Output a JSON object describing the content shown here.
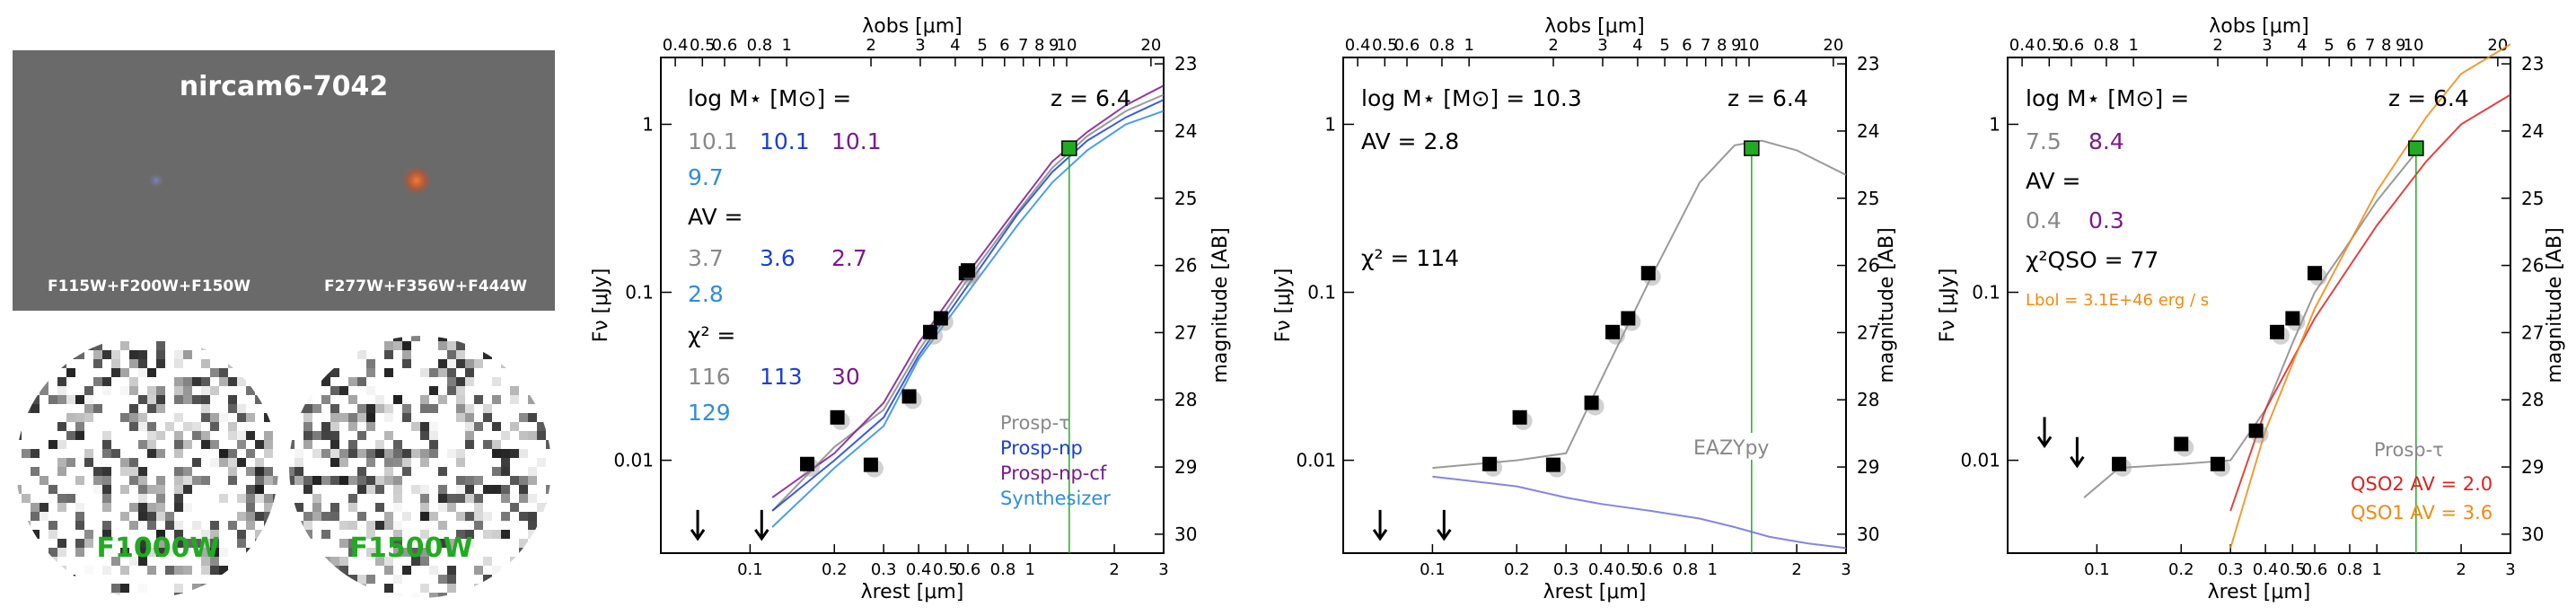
{
  "thumbnails": {
    "object_id": "nircam6-7042",
    "rgb_left_caption": "F115W+F200W+F150W",
    "rgb_right_caption": "F277W+F356W+F444W",
    "miri_left_label": "F1000W",
    "miri_right_label": "F1500W",
    "label_color": "#22aa22"
  },
  "panel_axes": {
    "top_xlabel": "λobs [μm]",
    "bottom_xlabel": "λrest [μm]",
    "ylabel": "Fν [μJy]",
    "right_ylabel": "magnitude [AB]",
    "y_ticks": [
      "0.01",
      "0.1",
      "1"
    ],
    "mag_ticks": [
      "23",
      "24",
      "25",
      "26",
      "27",
      "28",
      "29",
      "30"
    ],
    "top_ticks": [
      "0.4",
      "0.5",
      "0.6",
      "0.8",
      "1",
      "2",
      "3",
      "4",
      "5",
      "6",
      "7",
      "8",
      "9",
      "10",
      "20"
    ],
    "bottom_ticks": [
      "0.1",
      "0.2",
      "0.3",
      "0.4",
      "0.5",
      "0.6",
      "0.8",
      "1",
      "2",
      "3"
    ]
  },
  "panel1": {
    "mass_header": "log M⋆ [M⊙] =",
    "mass_values": [
      "10.1",
      "10.1",
      "10.1",
      "9.7"
    ],
    "av_header": "AV =",
    "av_values": [
      "3.7",
      "3.6",
      "2.7",
      "2.8"
    ],
    "chi_header": "χ² =",
    "chi_values": [
      "116",
      "113",
      "30",
      "129"
    ],
    "redshift": "z = 6.4",
    "legend": [
      "Prosp-τ",
      "Prosp-np",
      "Prosp-np-cf",
      "Synthesizer"
    ],
    "colors": [
      "#888888",
      "#1a3fd6",
      "#7a1a8c",
      "#2e8de0"
    ]
  },
  "panel2": {
    "mass_line": "log M⋆ [M⊙] = 10.3",
    "av_line": "AV = 2.8",
    "chi_line": "χ² = 114",
    "redshift": "z = 6.4",
    "eazy_label": "EAZYpy"
  },
  "panel3": {
    "mass_header": "log M⋆ [M⊙] =",
    "mass_values": [
      "7.5",
      "8.4"
    ],
    "av_header": "AV =",
    "av_values": [
      "0.4",
      "0.3"
    ],
    "chi_line": "χ²QSO = 77",
    "lbol": "Lbol = 3.1E+46 erg / s",
    "redshift": "z = 6.4",
    "legend": [
      "Prosp-τ",
      "QSO2 AV = 2.0",
      "QSO1 AV = 3.6"
    ],
    "colors": [
      "#888888",
      "#e02020",
      "#f08a10",
      "#7a1a8c"
    ]
  },
  "chart_data": [
    {
      "type": "scatter",
      "title": "",
      "xlabel": "λrest [μm]",
      "ylabel": "Fν [μJy]",
      "xscale": "log",
      "yscale": "log",
      "xlim": [
        0.048,
        3.0
      ],
      "ylim": [
        0.0028,
        2.5
      ],
      "photometry": {
        "x": [
          0.065,
          0.11,
          0.16,
          0.205,
          0.27,
          0.37,
          0.44,
          0.48,
          0.59,
          0.6,
          1.38
        ],
        "y": [
          0.0035,
          0.0035,
          0.0095,
          0.018,
          0.0094,
          0.024,
          0.058,
          0.07,
          0.13,
          0.135,
          0.72
        ],
        "upper_limit": [
          true,
          true,
          false,
          false,
          false,
          false,
          false,
          false,
          false,
          false,
          false
        ]
      },
      "series": [
        {
          "name": "Prosp-τ",
          "x": [
            0.12,
            0.2,
            0.3,
            0.4,
            0.6,
            0.9,
            1.2,
            1.6,
            2.2,
            3.0
          ],
          "y": [
            0.005,
            0.012,
            0.02,
            0.045,
            0.12,
            0.3,
            0.55,
            0.85,
            1.2,
            1.5
          ]
        },
        {
          "name": "Prosp-np",
          "x": [
            0.12,
            0.2,
            0.3,
            0.4,
            0.6,
            0.9,
            1.2,
            1.6,
            2.2,
            3.0
          ],
          "y": [
            0.005,
            0.01,
            0.018,
            0.042,
            0.11,
            0.29,
            0.52,
            0.8,
            1.1,
            1.4
          ]
        },
        {
          "name": "Prosp-np-cf",
          "x": [
            0.12,
            0.2,
            0.3,
            0.4,
            0.6,
            0.9,
            1.2,
            1.6,
            2.2,
            3.0
          ],
          "y": [
            0.006,
            0.011,
            0.022,
            0.05,
            0.13,
            0.32,
            0.6,
            0.9,
            1.3,
            1.7
          ]
        },
        {
          "name": "Synthesizer",
          "x": [
            0.12,
            0.2,
            0.3,
            0.4,
            0.6,
            0.9,
            1.2,
            1.6,
            2.2,
            3.0
          ],
          "y": [
            0.004,
            0.009,
            0.016,
            0.04,
            0.1,
            0.25,
            0.45,
            0.7,
            1.0,
            1.2
          ]
        }
      ]
    },
    {
      "type": "scatter",
      "title": "",
      "xlabel": "λrest [μm]",
      "ylabel": "Fν [μJy]",
      "xscale": "log",
      "yscale": "log",
      "xlim": [
        0.048,
        3.0
      ],
      "ylim": [
        0.0028,
        2.5
      ],
      "photometry": {
        "x": [
          0.065,
          0.11,
          0.16,
          0.205,
          0.27,
          0.37,
          0.44,
          0.5,
          0.59,
          1.38
        ],
        "y": [
          0.0035,
          0.0035,
          0.0095,
          0.018,
          0.0094,
          0.022,
          0.058,
          0.07,
          0.13,
          0.72
        ],
        "upper_limit": [
          true,
          true,
          false,
          false,
          false,
          false,
          false,
          false,
          false,
          false
        ]
      },
      "series": [
        {
          "name": "",
          "x": [
            0.1,
            0.2,
            0.3,
            0.4,
            0.6,
            0.9,
            1.2,
            1.5,
            2.0,
            3.0
          ],
          "y": [
            0.009,
            0.01,
            0.011,
            0.03,
            0.12,
            0.45,
            0.75,
            0.8,
            0.7,
            0.5
          ]
        },
        {
          "name": "EAZYpy",
          "x": [
            0.1,
            0.2,
            0.3,
            0.4,
            0.6,
            0.9,
            1.2,
            1.6,
            2.2,
            3.0
          ],
          "y": [
            0.008,
            0.007,
            0.006,
            0.0055,
            0.005,
            0.0045,
            0.004,
            0.0035,
            0.0032,
            0.003
          ]
        }
      ]
    },
    {
      "type": "scatter",
      "title": "",
      "xlabel": "λrest [μm]",
      "ylabel": "Fν [μJy]",
      "xscale": "log",
      "yscale": "log",
      "xlim": [
        0.048,
        3.0
      ],
      "ylim": [
        0.0028,
        2.5
      ],
      "photometry": {
        "x": [
          0.065,
          0.085,
          0.12,
          0.2,
          0.27,
          0.37,
          0.44,
          0.5,
          0.6,
          1.38
        ],
        "y": [
          0.0125,
          0.0095,
          0.0095,
          0.0125,
          0.0095,
          0.015,
          0.058,
          0.07,
          0.13,
          0.72
        ],
        "upper_limit": [
          true,
          true,
          false,
          false,
          false,
          false,
          false,
          false,
          false,
          false
        ]
      },
      "series": [
        {
          "name": "Prosp-τ",
          "x": [
            0.09,
            0.12,
            0.2,
            0.3,
            0.4,
            0.5,
            0.6,
            0.8,
            1.0,
            1.4
          ],
          "y": [
            0.006,
            0.009,
            0.0095,
            0.01,
            0.02,
            0.05,
            0.1,
            0.2,
            0.35,
            0.7
          ]
        },
        {
          "name": "QSO2 AV = 2.0",
          "x": [
            0.3,
            0.4,
            0.6,
            1.0,
            1.5,
            2.0,
            3.0
          ],
          "y": [
            0.005,
            0.02,
            0.07,
            0.25,
            0.6,
            1.0,
            1.5
          ]
        },
        {
          "name": "QSO1 AV = 3.6",
          "x": [
            0.3,
            0.4,
            0.6,
            1.0,
            1.5,
            2.0,
            3.0
          ],
          "y": [
            0.003,
            0.015,
            0.08,
            0.4,
            1.1,
            2.0,
            3.0
          ]
        }
      ]
    }
  ]
}
